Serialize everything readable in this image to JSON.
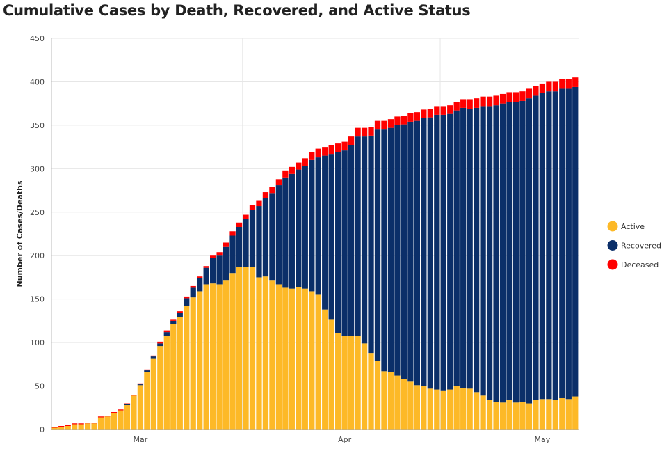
{
  "chart_data": {
    "type": "bar",
    "stacked": true,
    "title": "Cumulative Cases by Death, Recovered, and Active Status",
    "xlabel": "",
    "ylabel": "Number of Cases/Deaths",
    "ylim": [
      0,
      450
    ],
    "yticks": [
      0,
      50,
      100,
      150,
      200,
      250,
      300,
      350,
      400,
      450
    ],
    "xtick_labels": [
      {
        "label": "Mar",
        "date": "Mar 1"
      },
      {
        "label": "Apr",
        "date": "Apr 1"
      },
      {
        "label": "May",
        "date": "May 1"
      }
    ],
    "grid": true,
    "legend_position": "right",
    "colors": {
      "Active": "#FDB927",
      "Recovered": "#0B2F69",
      "Deceased": "#FF0000"
    },
    "start_date": "Feb 17",
    "series": [
      {
        "name": "Active",
        "values": [
          2,
          3,
          4,
          6,
          6,
          7,
          7,
          14,
          15,
          19,
          22,
          28,
          39,
          51,
          66,
          82,
          96,
          108,
          121,
          129,
          142,
          152,
          159,
          167,
          168,
          167,
          172,
          180,
          187,
          187,
          187,
          175,
          176,
          172,
          167,
          163,
          162,
          164,
          162,
          159,
          155,
          138,
          127,
          111,
          108,
          108,
          108,
          99,
          88,
          79,
          67,
          66,
          62,
          58,
          55,
          51,
          50,
          47,
          46,
          45,
          46,
          50,
          48,
          47,
          43,
          39,
          34,
          32,
          31,
          34,
          31,
          32,
          30,
          34,
          35,
          35,
          34,
          36,
          35,
          38
        ]
      },
      {
        "name": "Recovered",
        "values": [
          0,
          0,
          0,
          0,
          0,
          0,
          0,
          0,
          0,
          0,
          0,
          1,
          0,
          1,
          2,
          2,
          3,
          4,
          4,
          5,
          9,
          11,
          15,
          19,
          29,
          33,
          38,
          43,
          46,
          55,
          66,
          82,
          90,
          100,
          114,
          127,
          132,
          135,
          141,
          151,
          158,
          177,
          190,
          208,
          213,
          219,
          229,
          238,
          250,
          266,
          278,
          281,
          288,
          293,
          299,
          304,
          308,
          312,
          316,
          317,
          317,
          317,
          322,
          322,
          327,
          333,
          338,
          341,
          344,
          343,
          346,
          346,
          351,
          350,
          352,
          354,
          355,
          356,
          357,
          356
        ]
      },
      {
        "name": "Deceased",
        "values": [
          1,
          1,
          1,
          1,
          1,
          1,
          1,
          1,
          1,
          1,
          1,
          1,
          1,
          1,
          1,
          1,
          2,
          2,
          2,
          2,
          2,
          2,
          2,
          2,
          3,
          4,
          5,
          5,
          5,
          5,
          5,
          6,
          7,
          7,
          7,
          8,
          8,
          8,
          9,
          9,
          10,
          10,
          10,
          10,
          10,
          10,
          10,
          10,
          10,
          10,
          10,
          10,
          10,
          10,
          10,
          10,
          10,
          10,
          10,
          10,
          10,
          10,
          10,
          11,
          11,
          11,
          11,
          11,
          11,
          11,
          11,
          11,
          11,
          11,
          11,
          11,
          11,
          11,
          11,
          11
        ]
      }
    ]
  }
}
